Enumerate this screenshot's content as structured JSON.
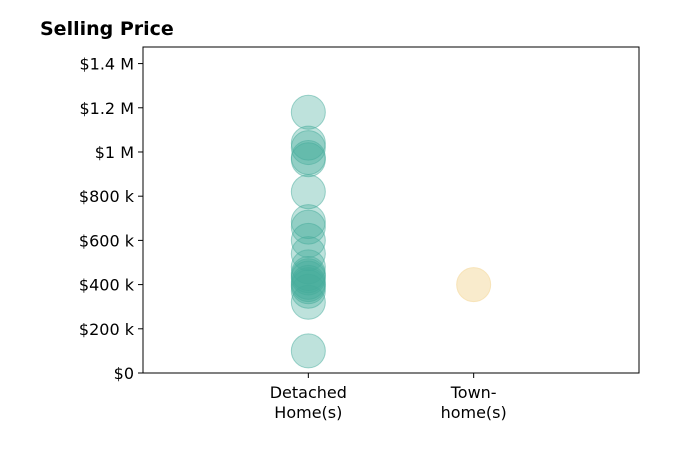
{
  "chart_data": {
    "type": "scatter",
    "title": "Selling Price",
    "xlabel": "",
    "ylabel": "",
    "categories": [
      {
        "lines": [
          "Detached",
          "Home(s)"
        ]
      },
      {
        "lines": [
          "Town-",
          "home(s)"
        ]
      }
    ],
    "xlim": [
      -1,
      2
    ],
    "ylim": [
      0,
      1475000
    ],
    "yticks": [
      {
        "value": 0,
        "label": "$0"
      },
      {
        "value": 200000,
        "label": "$200 k"
      },
      {
        "value": 400000,
        "label": "$400 k"
      },
      {
        "value": 600000,
        "label": "$600 k"
      },
      {
        "value": 800000,
        "label": "$800 k"
      },
      {
        "value": 1000000,
        "label": "$1 M"
      },
      {
        "value": 1200000,
        "label": "$1.2 M"
      },
      {
        "value": 1400000,
        "label": "$1.4 M"
      }
    ],
    "grid": false,
    "series": [
      {
        "category_index": 0,
        "color": "#45ab9b",
        "opacity": 0.35,
        "values": [
          1180000,
          1040000,
          1020000,
          975000,
          965000,
          820000,
          685000,
          660000,
          600000,
          540000,
          480000,
          450000,
          440000,
          430000,
          410000,
          400000,
          390000,
          370000,
          320000,
          100000
        ]
      },
      {
        "category_index": 1,
        "color": "#f5deaa",
        "opacity": 0.6,
        "values": [
          400000
        ]
      }
    ]
  }
}
